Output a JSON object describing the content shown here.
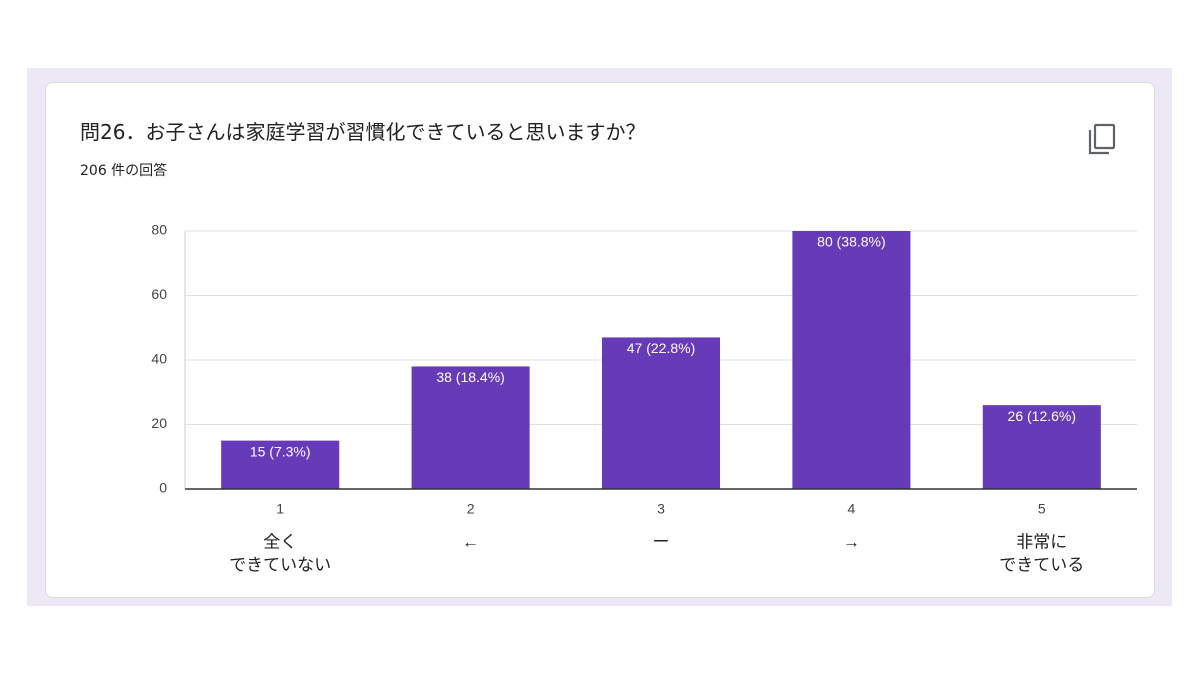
{
  "chart_data": {
    "type": "bar",
    "title": "問26．お子さんは家庭学習が習慣化できていると思いますか？",
    "subtitle": "206 件の回答",
    "categories": [
      "1",
      "2",
      "3",
      "4",
      "5"
    ],
    "scale_labels": [
      [
        "全く",
        "できていない"
      ],
      [
        "←"
      ],
      [
        "ー"
      ],
      [
        "→"
      ],
      [
        "非常に",
        "できている"
      ]
    ],
    "values": [
      15,
      38,
      47,
      80,
      26
    ],
    "value_labels": [
      "15 (7.3%)",
      "38 (18.4%)",
      "47 (22.8%)",
      "80 (38.8%)",
      "26 (12.6%)"
    ],
    "color": "#673ab7",
    "ylim": [
      0,
      80
    ],
    "yticks": [
      0,
      20,
      40,
      60,
      80
    ],
    "grid": true
  }
}
